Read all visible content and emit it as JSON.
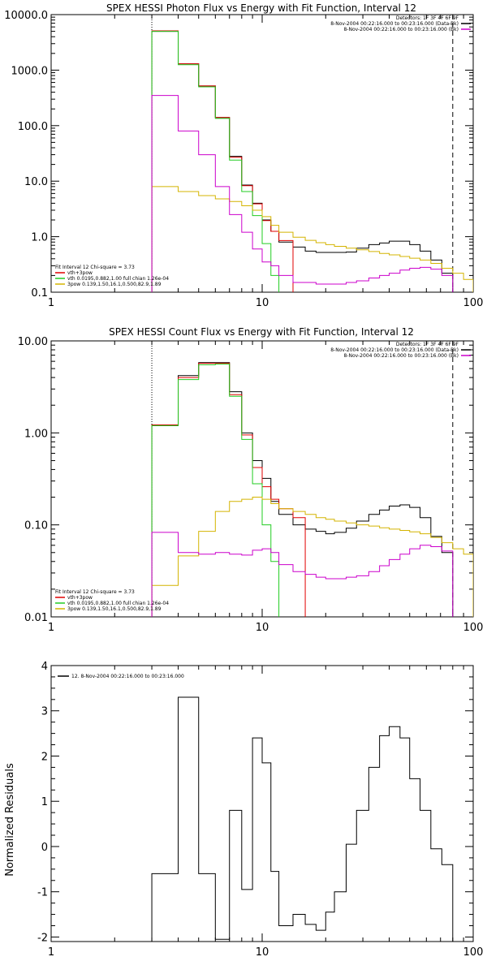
{
  "colors": {
    "black": "#000000",
    "red": "#e00000",
    "green": "#22cc22",
    "magenta": "#cc00cc",
    "gold": "#d4b400"
  },
  "chart_data": [
    {
      "type": "line",
      "title": "SPEX HESSI Photon Flux vs Energy with Fit Function, Interval 12",
      "xscale": "log",
      "yscale": "log",
      "xlim": [
        1,
        100
      ],
      "ylim": [
        0.1,
        10000
      ],
      "xticks": [
        {
          "v": 1,
          "label": "1"
        },
        {
          "v": 10,
          "label": "10"
        },
        {
          "v": 100,
          "label": "100"
        }
      ],
      "yticks": [
        {
          "v": 10000,
          "label": "10000.0"
        },
        {
          "v": 1000,
          "label": "1000.0"
        },
        {
          "v": 100,
          "label": "100.0"
        },
        {
          "v": 10,
          "label": "10.0"
        },
        {
          "v": 1,
          "label": "1.0"
        },
        {
          "v": 0.1,
          "label": "0.1"
        }
      ],
      "vlines": [
        {
          "x": 3.0,
          "style": "dotted",
          "color": "#000000"
        },
        {
          "x": 80,
          "style": "dashed",
          "color": "#000000"
        }
      ],
      "legend_tr": [
        {
          "text": "Detectors: 1F 3F 4F 6F 9F",
          "color": ""
        },
        {
          "text": "8-Nov-2004 00:22:16.000 to 00:23:16.000 (Data-Bk)",
          "color": "#000000"
        },
        {
          "text": "8-Nov-2004 00:22:16.000 to 00:23:16.000 (Bk)",
          "color": "#cc00cc"
        }
      ],
      "legend_bl": [
        {
          "text": "Fit Interval 12   Chi-square = 3.73",
          "color": ""
        },
        {
          "text": "vth+3pow",
          "color": "#e00000"
        },
        {
          "text": "vth 0.0195,0.882,1.00  full chian 1.26e-04",
          "color": "#22cc22"
        },
        {
          "text": "3pow 0.139,1.50,16.1,0.500,82.9,1.89",
          "color": "#d4b400"
        }
      ],
      "series": [
        {
          "color": "#000000",
          "edges": [
            3,
            4,
            5,
            6,
            7,
            8,
            9,
            10,
            11,
            12,
            14,
            16,
            18,
            20,
            22,
            25,
            28,
            32,
            36,
            40,
            45,
            50,
            56,
            63,
            71,
            80
          ],
          "values": [
            5000,
            1300,
            520,
            140,
            28,
            8.5,
            4,
            2.0,
            1.25,
            0.8,
            0.65,
            0.55,
            0.52,
            0.52,
            0.52,
            0.53,
            0.62,
            0.72,
            0.77,
            0.83,
            0.83,
            0.72,
            0.55,
            0.38,
            0.22
          ]
        },
        {
          "color": "#e00000",
          "edges": [
            3,
            4,
            5,
            6,
            7,
            8,
            9,
            10,
            11,
            12,
            14
          ],
          "values": [
            5100,
            1300,
            520,
            140,
            27,
            8.3,
            3.9,
            1.95,
            1.25,
            0.85
          ]
        },
        {
          "color": "#22cc22",
          "edges": [
            3,
            4,
            5,
            6,
            7,
            8,
            9,
            10,
            11,
            12
          ],
          "values": [
            5000,
            1250,
            500,
            135,
            24,
            6.5,
            2.4,
            0.75,
            0.2
          ]
        },
        {
          "color": "#d4b400",
          "edges": [
            3,
            4,
            5,
            6,
            7,
            8,
            9,
            10,
            11,
            12,
            14,
            16,
            18,
            20,
            22,
            25,
            28,
            32,
            36,
            40,
            45,
            50,
            56,
            63,
            71,
            80,
            90,
            100
          ],
          "values": [
            8,
            6.5,
            5.5,
            4.8,
            4.3,
            3.6,
            3.0,
            2.3,
            1.6,
            1.2,
            0.98,
            0.86,
            0.78,
            0.72,
            0.67,
            0.62,
            0.58,
            0.54,
            0.5,
            0.47,
            0.44,
            0.41,
            0.38,
            0.33,
            0.27,
            0.22,
            0.17
          ]
        },
        {
          "color": "#cc00cc",
          "edges": [
            3,
            4,
            5,
            6,
            7,
            8,
            9,
            10,
            11,
            12,
            14,
            16,
            18,
            20,
            22,
            25,
            28,
            32,
            36,
            40,
            45,
            50,
            56,
            63,
            71,
            80
          ],
          "values": [
            350,
            80,
            30,
            8,
            2.5,
            1.2,
            0.6,
            0.35,
            0.3,
            0.2,
            0.15,
            0.15,
            0.14,
            0.14,
            0.14,
            0.15,
            0.16,
            0.18,
            0.2,
            0.22,
            0.25,
            0.27,
            0.28,
            0.26,
            0.2
          ]
        }
      ]
    },
    {
      "type": "line",
      "title": "SPEX HESSI Count Flux vs Energy with Fit Function, Interval 12",
      "xscale": "log",
      "yscale": "log",
      "xlim": [
        1,
        100
      ],
      "ylim": [
        0.01,
        10
      ],
      "xticks": [
        {
          "v": 1,
          "label": "1"
        },
        {
          "v": 10,
          "label": "10"
        },
        {
          "v": 100,
          "label": "100"
        }
      ],
      "yticks": [
        {
          "v": 10,
          "label": "10.00"
        },
        {
          "v": 1,
          "label": "1.00"
        },
        {
          "v": 0.1,
          "label": "0.10"
        },
        {
          "v": 0.01,
          "label": "0.01"
        }
      ],
      "vlines": [
        {
          "x": 3.0,
          "style": "dotted",
          "color": "#000000"
        },
        {
          "x": 80,
          "style": "dashed",
          "color": "#000000"
        }
      ],
      "legend_tr": [
        {
          "text": "Detectors: 1F 3F 4F 6F 9F",
          "color": ""
        },
        {
          "text": "8-Nov-2004 00:22:16.000 to 00:23:16.000 (Data-Bk)",
          "color": "#000000"
        },
        {
          "text": "8-Nov-2004 00:22:16.000 to 00:23:16.000 (Bk)",
          "color": "#cc00cc"
        }
      ],
      "legend_bl": [
        {
          "text": "Fit Interval 12   Chi-square = 3.73",
          "color": ""
        },
        {
          "text": "vth+3pow",
          "color": "#e00000"
        },
        {
          "text": "vth 0.0195,0.882,1.00  full chian 1.26e-04",
          "color": "#22cc22"
        },
        {
          "text": "3pow 0.139,1.50,16.1,0.500,82.9,1.89",
          "color": "#d4b400"
        }
      ],
      "series": [
        {
          "color": "#000000",
          "edges": [
            3,
            4,
            5,
            6,
            7,
            8,
            9,
            10,
            11,
            12,
            14,
            16,
            18,
            20,
            22,
            25,
            28,
            32,
            36,
            40,
            45,
            50,
            56,
            63,
            71,
            80
          ],
          "values": [
            1.2,
            4.2,
            5.8,
            5.8,
            2.8,
            1.0,
            0.5,
            0.32,
            0.18,
            0.13,
            0.1,
            0.09,
            0.085,
            0.08,
            0.083,
            0.092,
            0.11,
            0.13,
            0.145,
            0.16,
            0.165,
            0.155,
            0.12,
            0.075,
            0.05
          ]
        },
        {
          "color": "#e00000",
          "edges": [
            3,
            4,
            5,
            6,
            7,
            8,
            9,
            10,
            11,
            12,
            14,
            16
          ],
          "values": [
            1.22,
            4.0,
            5.7,
            5.7,
            2.6,
            0.95,
            0.42,
            0.26,
            0.19,
            0.15,
            0.12
          ]
        },
        {
          "color": "#22cc22",
          "edges": [
            3,
            4,
            5,
            6,
            7,
            8,
            9,
            10,
            11,
            12
          ],
          "values": [
            1.2,
            3.8,
            5.5,
            5.6,
            2.5,
            0.85,
            0.28,
            0.1,
            0.04
          ]
        },
        {
          "color": "#d4b400",
          "edges": [
            3,
            4,
            5,
            6,
            7,
            8,
            9,
            10,
            11,
            12,
            14,
            16,
            18,
            20,
            22,
            25,
            28,
            32,
            36,
            40,
            45,
            50,
            56,
            63,
            71,
            80,
            90,
            100
          ],
          "values": [
            0.022,
            0.046,
            0.085,
            0.14,
            0.18,
            0.19,
            0.2,
            0.19,
            0.17,
            0.15,
            0.14,
            0.13,
            0.12,
            0.115,
            0.11,
            0.105,
            0.1,
            0.097,
            0.093,
            0.09,
            0.087,
            0.084,
            0.08,
            0.073,
            0.064,
            0.055,
            0.048
          ]
        },
        {
          "color": "#cc00cc",
          "edges": [
            3,
            4,
            5,
            6,
            7,
            8,
            9,
            10,
            11,
            12,
            14,
            16,
            18,
            20,
            22,
            25,
            28,
            32,
            36,
            40,
            45,
            50,
            56,
            63,
            71,
            80
          ],
          "values": [
            0.083,
            0.05,
            0.048,
            0.05,
            0.048,
            0.047,
            0.053,
            0.055,
            0.05,
            0.037,
            0.031,
            0.029,
            0.027,
            0.026,
            0.026,
            0.027,
            0.028,
            0.031,
            0.036,
            0.042,
            0.048,
            0.055,
            0.06,
            0.058,
            0.052
          ]
        }
      ]
    },
    {
      "type": "line",
      "title": "",
      "xscale": "log",
      "yscale": "linear",
      "xlim": [
        1,
        100
      ],
      "ylim": [
        -2.1,
        4
      ],
      "xticks": [
        {
          "v": 1,
          "label": "1"
        },
        {
          "v": 10,
          "label": "10"
        },
        {
          "v": 100,
          "label": "100"
        }
      ],
      "yticks": [
        {
          "v": 4,
          "label": "4"
        },
        {
          "v": 3,
          "label": "3"
        },
        {
          "v": 2,
          "label": "2"
        },
        {
          "v": 1,
          "label": "1"
        },
        {
          "v": 0,
          "label": "0"
        },
        {
          "v": -1,
          "label": "-1"
        },
        {
          "v": -2,
          "label": "-2"
        }
      ],
      "ylabel": "Normalized Residuals",
      "legend_tl": [
        {
          "text": "12.  8-Nov-2004 00:22:16.000 to 00:23:16.000",
          "color": "#000000"
        }
      ],
      "series": [
        {
          "color": "#000000",
          "edges": [
            3,
            4,
            5,
            6,
            7,
            8,
            9,
            10,
            11,
            12,
            14,
            16,
            18,
            20,
            22,
            25,
            28,
            32,
            36,
            40,
            45,
            50,
            56,
            63,
            71,
            80
          ],
          "values": [
            -0.6,
            3.3,
            -0.6,
            -2.05,
            0.8,
            -0.95,
            2.4,
            1.85,
            -0.55,
            -1.75,
            -1.5,
            -1.72,
            -1.85,
            -1.45,
            -1.0,
            0.05,
            0.8,
            1.75,
            2.45,
            2.65,
            2.4,
            1.5,
            0.8,
            -0.05,
            -0.4
          ]
        }
      ]
    }
  ]
}
